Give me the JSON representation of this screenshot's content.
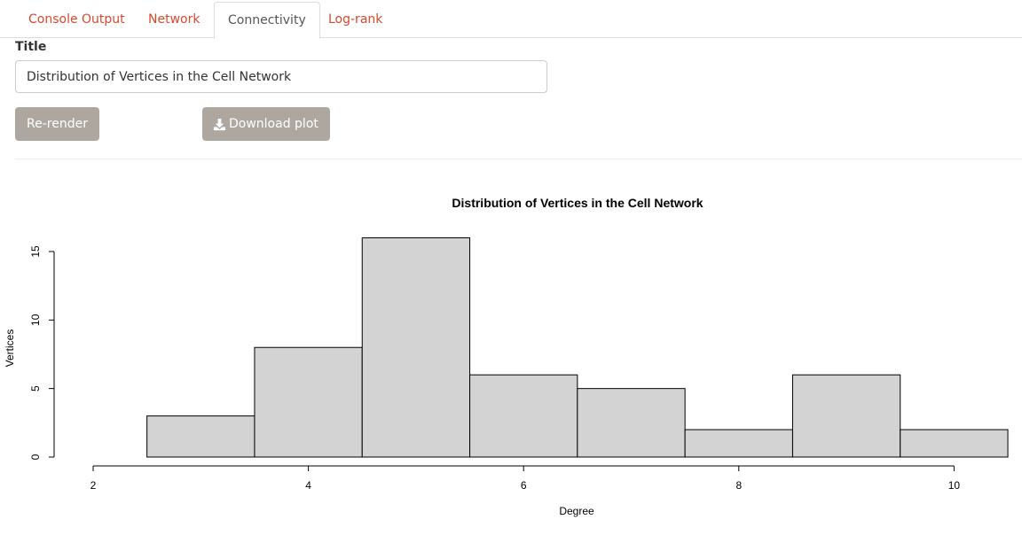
{
  "tabs": [
    {
      "label": "Console Output",
      "active": false
    },
    {
      "label": "Network",
      "active": false
    },
    {
      "label": "Connectivity",
      "active": true
    },
    {
      "label": "Log-rank",
      "active": false
    }
  ],
  "form": {
    "title_label": "Title",
    "title_value": "Distribution of Vertices in the Cell Network"
  },
  "buttons": {
    "rerender_label": "Re-render",
    "download_label": "Download plot",
    "download_icon": "download-icon"
  },
  "colors": {
    "tab_link": "#d9492e",
    "button_bg": "#aea79f",
    "bar_fill": "#d3d3d3"
  },
  "chart_data": {
    "type": "bar",
    "title": "Distribution of Vertices in the Cell Network",
    "xlabel": "Degree",
    "ylabel": "Vertices",
    "bins": [
      [
        2.5,
        3.5
      ],
      [
        3.5,
        4.5
      ],
      [
        4.5,
        5.5
      ],
      [
        5.5,
        6.5
      ],
      [
        6.5,
        7.5
      ],
      [
        7.5,
        8.5
      ],
      [
        8.5,
        9.5
      ],
      [
        9.5,
        10.5
      ]
    ],
    "values": [
      3,
      8,
      16,
      6,
      5,
      2,
      6,
      2
    ],
    "xticks": [
      2,
      4,
      6,
      8,
      10
    ],
    "yticks": [
      0,
      5,
      10,
      15
    ],
    "xlim": [
      2,
      10.5
    ],
    "ylim": [
      0,
      16
    ],
    "grid": false
  }
}
